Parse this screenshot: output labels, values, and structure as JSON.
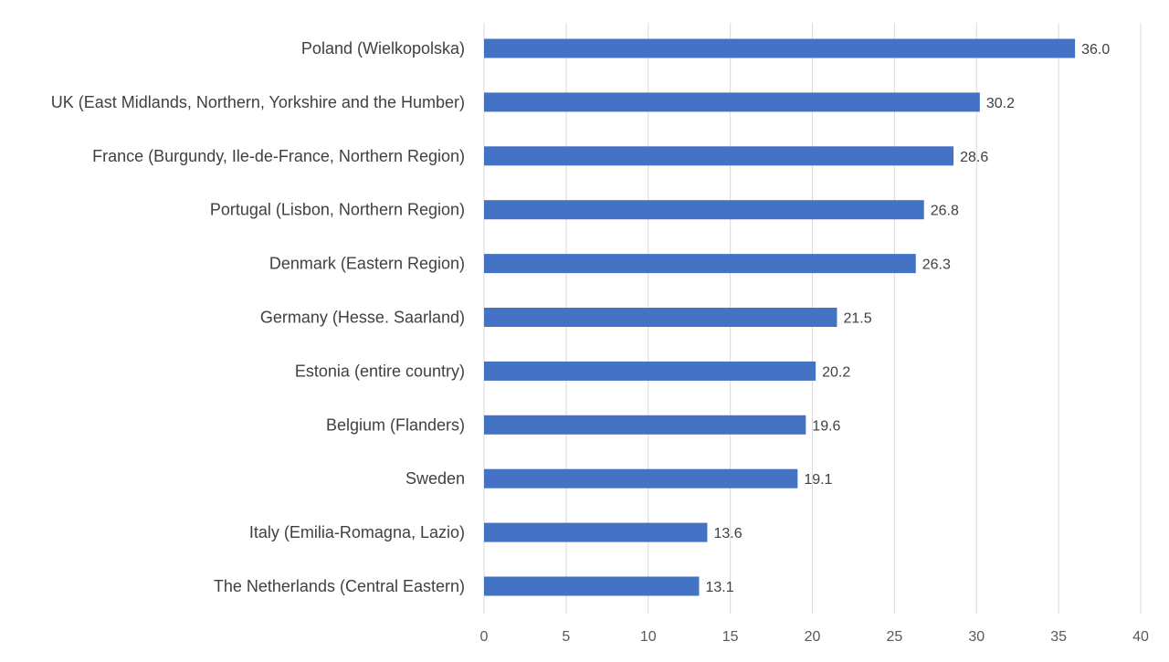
{
  "chart_data": {
    "type": "bar",
    "orientation": "horizontal",
    "categories": [
      "Poland (Wielkopolska)",
      "UK (East Midlands, Northern, Yorkshire and the Humber)",
      "France (Burgundy, Ile-de-France, Northern Region)",
      "Portugal (Lisbon, Northern Region)",
      "Denmark (Eastern Region)",
      "Germany (Hesse. Saarland)",
      "Estonia (entire country)",
      "Belgium (Flanders)",
      "Sweden",
      "Italy (Emilia-Romagna, Lazio)",
      "The Netherlands (Central Eastern)"
    ],
    "values": [
      36.0,
      30.2,
      28.6,
      26.8,
      26.3,
      21.5,
      20.2,
      19.6,
      19.1,
      13.6,
      13.1
    ],
    "value_labels": [
      "36.0",
      "30.2",
      "28.6",
      "26.8",
      "26.3",
      "21.5",
      "20.2",
      "19.6",
      "19.1",
      "13.6",
      "13.1"
    ],
    "xlim": [
      0,
      40
    ],
    "x_ticks": [
      "0",
      "5",
      "10",
      "15",
      "20",
      "25",
      "30",
      "35",
      "40"
    ],
    "grid": "vertical",
    "bar_color": "#4472C4",
    "legend": "none"
  }
}
